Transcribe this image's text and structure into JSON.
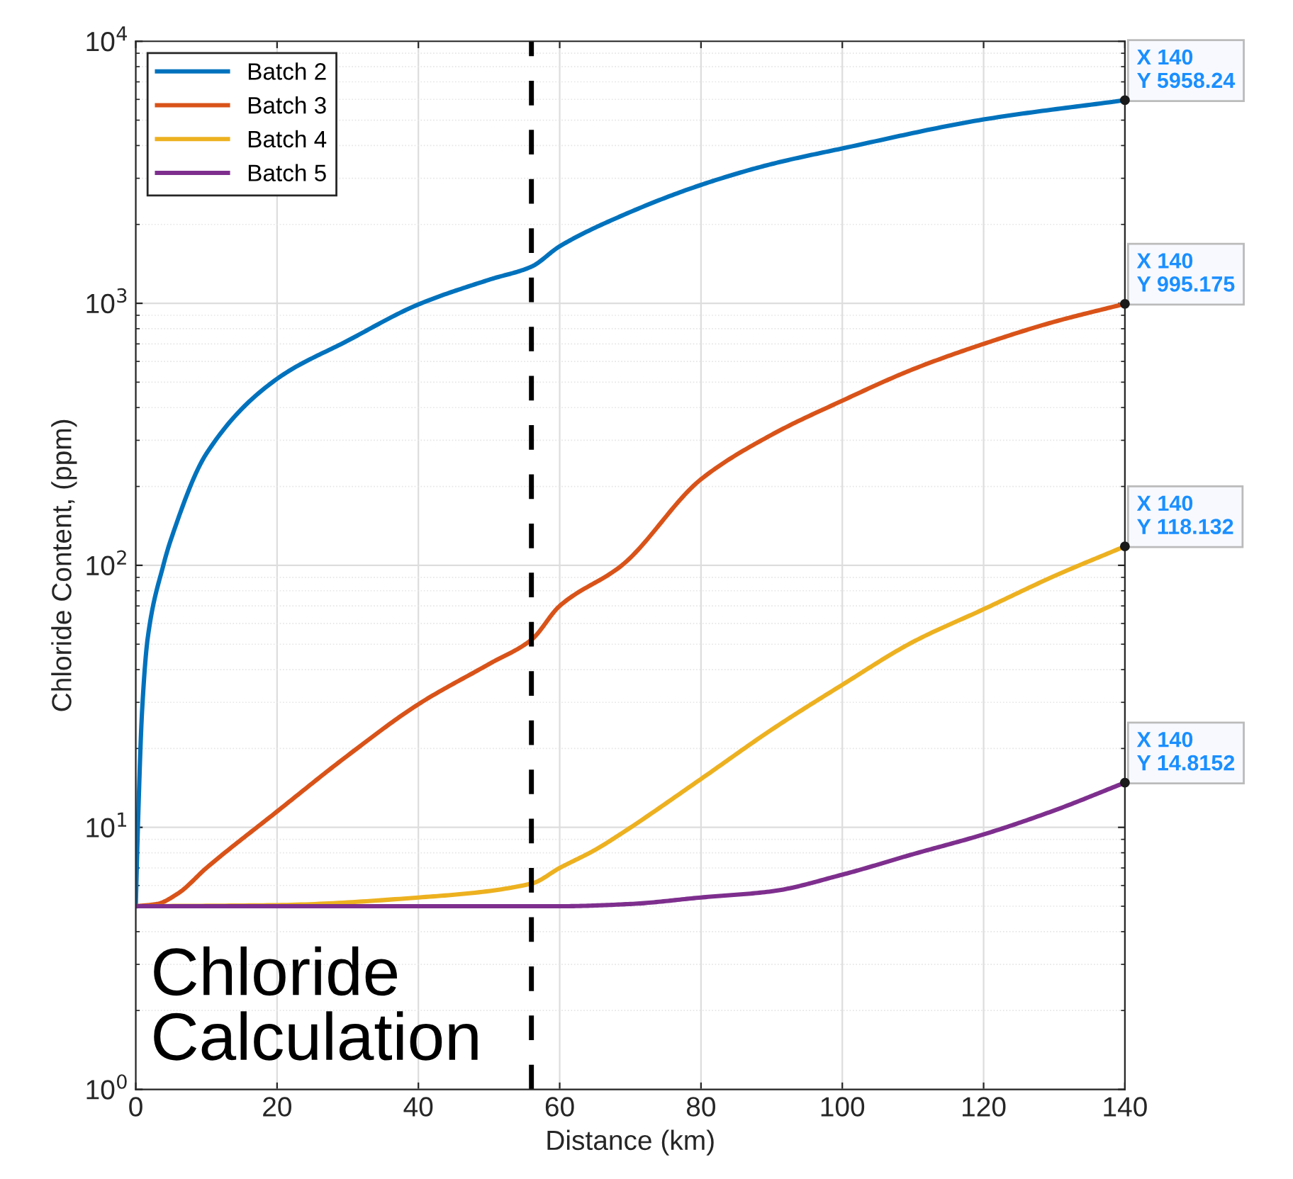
{
  "chart_data": {
    "type": "line",
    "xlabel": "Distance (km)",
    "ylabel": "Chloride Content, (ppm)",
    "log": "y",
    "xlim": [
      0,
      140
    ],
    "ylim": [
      1,
      10000
    ],
    "xticks": [
      0,
      20,
      40,
      60,
      80,
      100,
      120,
      140
    ],
    "yticks": [
      {
        "value": 1,
        "label": "10$^{0}$"
      },
      {
        "value": 10,
        "label": "10$^{1}$"
      },
      {
        "value": 100,
        "label": "10$^{2}$"
      },
      {
        "value": 1000,
        "label": "10$^{3}$"
      },
      {
        "value": 10000,
        "label": "10$^{4}$"
      }
    ],
    "grid": true,
    "legend": "top left",
    "line_style": "solid",
    "series": [
      {
        "name": "Batch 2",
        "color": "#0072bd",
        "x": [
          0,
          0.3,
          0.9,
          1.7,
          3.9,
          5,
          10,
          20,
          30,
          40,
          50,
          56,
          60,
          68.8,
          80,
          90,
          100,
          120,
          140
        ],
        "values": [
          5,
          10,
          28,
          53,
          100,
          126,
          267,
          515,
          720,
          990,
          1230,
          1380,
          1650,
          2160,
          2830,
          3400,
          3900,
          5030,
          5958.24
        ]
      },
      {
        "name": "Batch 3",
        "color": "#d95319",
        "x": [
          0,
          3,
          6,
          10,
          20,
          30,
          40,
          50,
          56,
          60,
          68.8,
          80,
          90,
          100,
          110,
          120,
          130,
          140
        ],
        "values": [
          5,
          5.1,
          5.6,
          7,
          11.5,
          18.8,
          29.5,
          42,
          52,
          70,
          100,
          213,
          315,
          425,
          560,
          700,
          850,
          995.175
        ]
      },
      {
        "name": "Batch 4",
        "color": "#edb120",
        "x": [
          0,
          20,
          40,
          56,
          60,
          65,
          68.8,
          80,
          90,
          100,
          110,
          120,
          130,
          140
        ],
        "values": [
          5,
          5.05,
          5.4,
          6.1,
          7,
          8.2,
          9.5,
          15.3,
          23.6,
          35,
          51,
          68,
          91,
          118.132
        ]
      },
      {
        "name": "Batch 5",
        "color": "#7e2f8e",
        "x": [
          0,
          60,
          70,
          80,
          90,
          100,
          110,
          120,
          130,
          140
        ],
        "values": [
          5,
          5,
          5.1,
          5.4,
          5.7,
          6.6,
          7.9,
          9.4,
          11.6,
          14.8152
        ]
      }
    ],
    "ref_lines": [
      {
        "axis": "x",
        "value": 56,
        "color": "#000000",
        "line_style": "dashed"
      }
    ],
    "annotations": [
      "X 140\nY 5958.24",
      "X 140\nY 995.175",
      "X 140\nY 118.132",
      "X 140\nY 14.8152",
      "Chloride\nCalculation"
    ]
  }
}
